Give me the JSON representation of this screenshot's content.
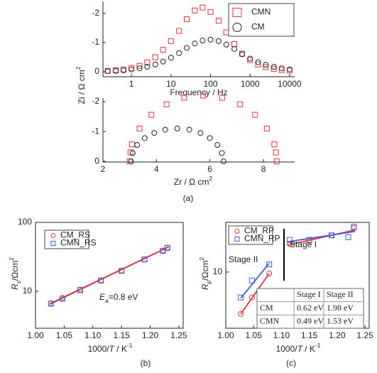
{
  "chart_data": [
    {
      "type": "scatter",
      "xscale": "log",
      "box": false,
      "xlim": [
        0.19,
        13400
      ],
      "xticks": [
        1,
        10,
        100,
        1000,
        10000
      ],
      "ylim": [
        0.17,
        -2.41
      ],
      "yticks": [
        -2,
        -1,
        0
      ],
      "x_label": [
        {
          "text": "Frequency / Hz"
        }
      ],
      "y_label": [
        {
          "text": "Zi / Ω cm"
        },
        {
          "text": "2",
          "style": "sup"
        }
      ],
      "legend": "upper right",
      "series": [
        {
          "name": "CMN",
          "color": "#e8323c",
          "marker": "square",
          "x": [
            0.25,
            0.4,
            0.63,
            1,
            1.6,
            2.5,
            4,
            6.3,
            10,
            16,
            25,
            40,
            63,
            100,
            160,
            250,
            400,
            630,
            1000,
            1600,
            2500,
            4000,
            6300,
            10000
          ],
          "values": [
            -0.03,
            -0.05,
            -0.08,
            -0.13,
            -0.2,
            -0.32,
            -0.5,
            -0.75,
            -1.05,
            -1.4,
            -1.8,
            -2.1,
            -2.2,
            -2.05,
            -1.75,
            -1.35,
            -0.95,
            -0.62,
            -0.4,
            -0.25,
            -0.16,
            -0.1,
            -0.06,
            -0.04
          ]
        },
        {
          "name": "CM",
          "color": "#222222",
          "marker": "circle",
          "x": [
            0.25,
            0.4,
            0.63,
            1,
            1.6,
            2.5,
            4,
            6.3,
            10,
            16,
            25,
            40,
            63,
            100,
            160,
            250,
            400,
            630,
            1000,
            1600,
            2500,
            4000,
            6300,
            10000
          ],
          "values": [
            -0.02,
            -0.03,
            -0.05,
            -0.08,
            -0.12,
            -0.17,
            -0.25,
            -0.35,
            -0.48,
            -0.64,
            -0.82,
            -0.97,
            -1.07,
            -1.1,
            -1.05,
            -0.93,
            -0.78,
            -0.6,
            -0.45,
            -0.33,
            -0.24,
            -0.17,
            -0.12,
            -0.08
          ]
        }
      ]
    },
    {
      "type": "scatter",
      "xscale": "linear",
      "box": false,
      "xlim": [
        2,
        9.17
      ],
      "xticks": [
        2,
        4,
        6,
        8
      ],
      "ylim": [
        0.02,
        -2.12
      ],
      "yticks": [
        -2,
        -1,
        0
      ],
      "x_label": [
        {
          "text": "Zr / Ω cm"
        },
        {
          "text": "2",
          "style": "sup"
        }
      ],
      "caption": "(a)",
      "series": [
        {
          "color": "#e8323c",
          "marker": "square",
          "x": [
            8.5,
            8.47,
            8.41,
            8.13,
            7.69,
            7.13,
            6.46,
            5.75,
            5.04,
            4.38,
            3.81,
            3.37,
            3.09,
            3.03,
            3.0
          ],
          "values": [
            0,
            -0.3,
            -0.57,
            -1.1,
            -1.56,
            -1.91,
            -2.13,
            -2.2,
            -2.13,
            -1.91,
            -1.56,
            -1.1,
            -0.57,
            -0.3,
            0
          ]
        },
        {
          "color": "#222222",
          "marker": "circle",
          "x": [
            6.51,
            6.45,
            6.28,
            6.0,
            5.65,
            5.23,
            4.78,
            4.33,
            3.92,
            3.56,
            3.28,
            3.11,
            3.05
          ],
          "values": [
            0,
            -0.28,
            -0.55,
            -0.78,
            -0.95,
            -1.06,
            -1.1,
            -1.06,
            -0.95,
            -0.78,
            -0.55,
            -0.28,
            0
          ]
        }
      ]
    },
    {
      "type": "scatter",
      "yscale": "log",
      "box": true,
      "xlim": [
        1.0,
        1.2575
      ],
      "xticks": [
        {
          "value": 1.0,
          "label": "1.00"
        },
        1.05,
        {
          "value": 1.1,
          "label": "1.10"
        },
        1.15,
        {
          "value": 1.2,
          "label": "1.20"
        },
        1.25
      ],
      "ylim": [
        2.91,
        100
      ],
      "yticks": [
        10,
        100
      ],
      "x_label": [
        {
          "text": "1000/"
        },
        {
          "text": "T",
          "style": "italic"
        },
        {
          "text": " / K"
        },
        {
          "text": "-1",
          "style": "sup"
        }
      ],
      "y_label": [
        {
          "text": "R",
          "style": "italic"
        },
        {
          "text": "s",
          "style": "sub"
        },
        {
          "text": "/Ωcm"
        },
        {
          "text": "2",
          "style": "sup"
        }
      ],
      "annotation": [
        {
          "text": "E",
          "style": "italic"
        },
        {
          "text": "a",
          "style": "sub"
        },
        {
          "text": "=0.8 eV"
        }
      ],
      "caption": "(b)",
      "legend": "upper left",
      "series": [
        {
          "name": "CM_RS",
          "color": "#e8323c",
          "marker": "circle",
          "x": [
            1.027,
            1.047,
            1.078,
            1.114,
            1.15,
            1.19,
            1.222,
            1.23
          ],
          "values": [
            6.7,
            8.0,
            10.6,
            14.5,
            20,
            29,
            39,
            43
          ]
        },
        {
          "name": "CMN_RS",
          "color": "#3a5fd9",
          "marker": "square",
          "x": [
            1.027,
            1.047,
            1.078,
            1.114,
            1.15,
            1.19,
            1.222,
            1.23
          ],
          "values": [
            6.6,
            7.8,
            10.4,
            14.3,
            19.8,
            29,
            38.5,
            42.5
          ]
        }
      ],
      "lines": [
        {
          "color": "#3a5fd9",
          "x": [
            1.025,
            1.232
          ],
          "values": [
            6.5,
            44
          ]
        },
        {
          "color": "#e8323c",
          "x": [
            1.025,
            1.232
          ],
          "values": [
            6.6,
            44
          ]
        }
      ]
    },
    {
      "type": "scatter",
      "yscale": "log",
      "box": true,
      "xlim": [
        1.0,
        1.2575
      ],
      "xticks": [
        {
          "value": 1.0,
          "label": "1.00"
        },
        1.05,
        {
          "value": 1.1,
          "label": "1.10"
        },
        1.15,
        {
          "value": 1.2,
          "label": "1.20"
        },
        1.25
      ],
      "ylim": [
        1.47,
        54.5
      ],
      "yticks": [
        10
      ],
      "x_label": [
        {
          "text": "1000/"
        },
        {
          "text": "T",
          "style": "italic"
        },
        {
          "text": " / K"
        },
        {
          "text": "-1",
          "style": "sup"
        }
      ],
      "y_label": [
        {
          "text": "R",
          "style": "italic"
        },
        {
          "text": "p",
          "style": "sub"
        },
        {
          "text": "/Ωcm"
        },
        {
          "text": "2",
          "style": "sup"
        }
      ],
      "annotations": [
        "Stage I",
        "Stage II"
      ],
      "caption": "(c)",
      "legend": "upper left",
      "series": [
        {
          "name": "CM_RP",
          "color": "#e8323c",
          "marker": "circle",
          "x": [
            1.027,
            1.047,
            1.078,
            1.115,
            1.15,
            1.19,
            1.23
          ],
          "values": [
            2.4,
            4.2,
            9.5,
            26,
            29,
            35,
            45
          ]
        },
        {
          "name": "CMN_RP",
          "color": "#3a5fd9",
          "marker": "square",
          "x": [
            1.027,
            1.047,
            1.078,
            1.115,
            1.15,
            1.19,
            1.22,
            1.23
          ],
          "values": [
            4.2,
            7.5,
            13,
            30,
            30,
            35,
            33,
            47
          ]
        }
      ],
      "lines": [
        {
          "color": "#e8323c",
          "x": [
            1.027,
            1.078
          ],
          "values": [
            2.4,
            9.5
          ]
        },
        {
          "color": "#3a5fd9",
          "x": [
            1.027,
            1.078
          ],
          "values": [
            4.1,
            13.5
          ]
        },
        {
          "color": "#e8323c",
          "x": [
            1.11,
            1.232
          ],
          "values": [
            25,
            42
          ]
        },
        {
          "color": "#3a5fd9",
          "x": [
            1.11,
            1.232
          ],
          "values": [
            28,
            40
          ]
        }
      ],
      "table": {
        "columns": [
          "Stage I",
          "Stage II"
        ],
        "rows": [
          {
            "name": "CM",
            "cells": [
              "0.62 eV",
              "1.98 eV"
            ]
          },
          {
            "name": "CMN",
            "cells": [
              "0.49 eV",
              "1.53 eV"
            ]
          }
        ]
      }
    }
  ]
}
